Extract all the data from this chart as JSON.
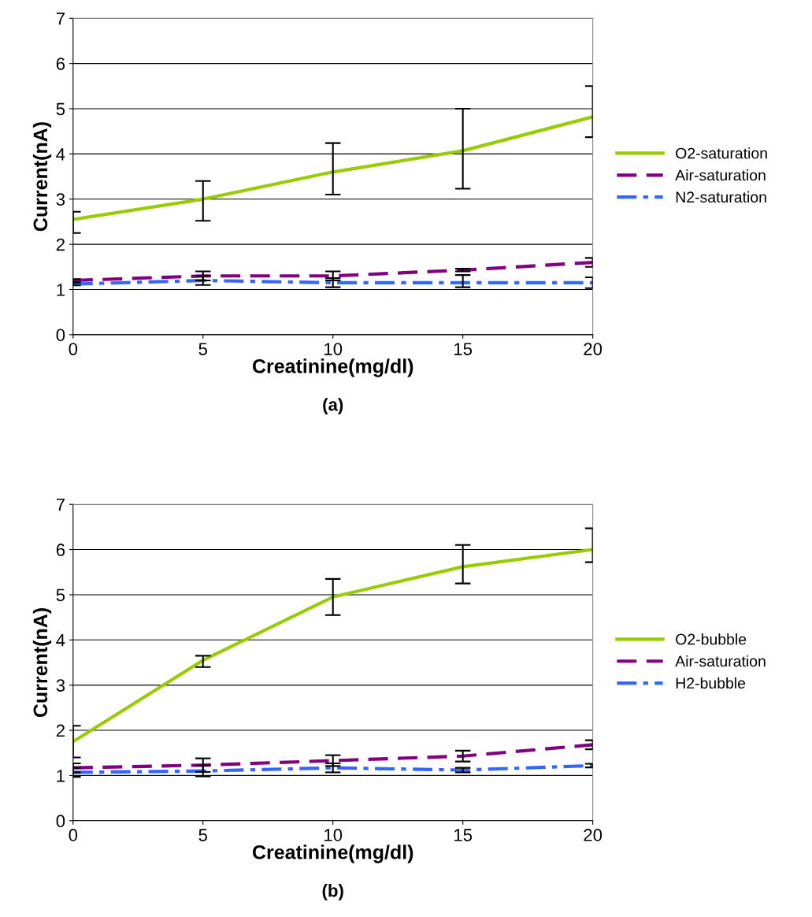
{
  "chart_data": [
    {
      "type": "line",
      "title": "(a)",
      "xlabel": "Creatinine(mg/dl)",
      "ylabel": "Current(nA)",
      "x": [
        0,
        5,
        10,
        15,
        20
      ],
      "xlim": [
        0,
        20
      ],
      "xticks": [
        0,
        5,
        10,
        15,
        20
      ],
      "ylim": [
        0,
        7
      ],
      "yticks": [
        0,
        1,
        2,
        3,
        4,
        5,
        6,
        7
      ],
      "grid": "y",
      "legend": "right",
      "series": [
        {
          "name": "O2-saturation",
          "color": "#99cc00",
          "line_style": "solid",
          "values": [
            2.55,
            3.0,
            3.6,
            4.07,
            4.82
          ],
          "errors": [
            [
              2.25,
              2.72
            ],
            [
              2.52,
              3.4
            ],
            [
              3.1,
              4.24
            ],
            [
              3.23,
              5.0
            ],
            [
              4.37,
              5.5
            ]
          ]
        },
        {
          "name": "Air-saturation",
          "color": "#800080",
          "line_style": "dashed",
          "values": [
            1.2,
            1.3,
            1.3,
            1.43,
            1.6
          ],
          "errors": [
            0.03,
            0.1,
            0.1,
            0.03,
            0.1
          ]
        },
        {
          "name": "N2-saturation",
          "color": "#3366ff",
          "line_style": "dashdot",
          "values": [
            1.12,
            1.2,
            1.15,
            1.15,
            1.15
          ],
          "errors": [
            0.03,
            0.1,
            0.1,
            [
              1.05,
              1.32
            ],
            0.12
          ]
        }
      ]
    },
    {
      "type": "line",
      "title": "(b)",
      "xlabel": "Creatinine(mg/dl)",
      "ylabel": "Current(nA)",
      "x": [
        0,
        5,
        10,
        15,
        20
      ],
      "xlim": [
        0,
        20
      ],
      "xticks": [
        0,
        5,
        10,
        15,
        20
      ],
      "ylim": [
        0,
        7
      ],
      "yticks": [
        0,
        1,
        2,
        3,
        4,
        5,
        6,
        7
      ],
      "grid": "y",
      "legend": "right",
      "series": [
        {
          "name": "O2-bubble",
          "color": "#99cc00",
          "line_style": "solid",
          "values": [
            1.75,
            3.55,
            4.95,
            5.62,
            6.0
          ],
          "errors": [
            0.35,
            [
              3.4,
              3.65
            ],
            [
              4.55,
              5.35
            ],
            [
              5.25,
              6.1
            ],
            [
              5.72,
              6.47
            ]
          ]
        },
        {
          "name": "Air-saturation",
          "color": "#800080",
          "line_style": "dashed",
          "values": [
            1.17,
            1.23,
            1.33,
            1.43,
            1.68
          ],
          "errors": [
            0.1,
            0.15,
            0.12,
            0.12,
            0.1
          ]
        },
        {
          "name": "H2-bubble",
          "color": "#3366ff",
          "line_style": "dashdot",
          "values": [
            1.07,
            1.1,
            1.17,
            1.12,
            1.22
          ],
          "errors": [
            0.1,
            0.12,
            0.1,
            0.05,
            0.04
          ]
        }
      ]
    }
  ]
}
